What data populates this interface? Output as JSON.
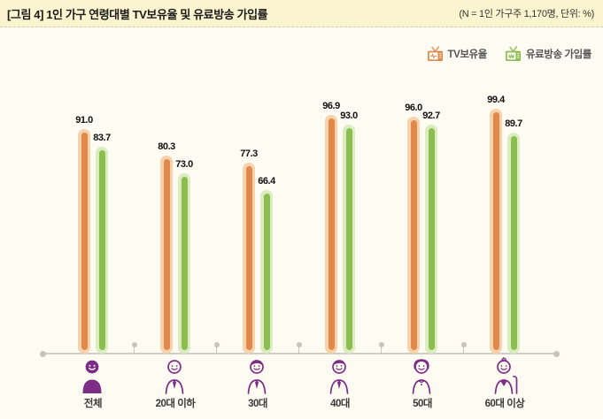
{
  "header": {
    "title": "[그림 4]  1인 가구 연령대별 TV보유율 및 유료방송 가입률",
    "note": "(N = 1인 가구주 1,170명, 단위: %)"
  },
  "legend": [
    {
      "label": "TV보유율",
      "icon": "tv-pulse-icon",
      "color": "#e1884b"
    },
    {
      "label": "유료방송 가입률",
      "icon": "tv-won-icon",
      "color": "#8cbe4f"
    }
  ],
  "chart_data": {
    "type": "bar",
    "title": "1인 가구 연령대별 TV보유율 및 유료방송 가입률",
    "unit": "%",
    "sample_note": "N = 1인 가구주 1,170명",
    "categories": [
      "전체",
      "20대 이하",
      "30대",
      "40대",
      "50대",
      "60대 이상"
    ],
    "axis_icons": [
      "person-solid-icon",
      "person-20s-icon",
      "person-30s-icon",
      "person-40s-icon",
      "person-50s-icon",
      "person-elderly-icon"
    ],
    "series": [
      {
        "name": "TV보유율",
        "values": [
          91.0,
          80.3,
          77.3,
          96.9,
          96.0,
          99.4
        ],
        "color": "#e1884b",
        "light_color": "#f7d2ab"
      },
      {
        "name": "유료방송 가입률",
        "values": [
          83.7,
          73.0,
          66.4,
          93.0,
          92.7,
          89.7
        ],
        "color": "#8cbe4f",
        "light_color": "#dcecc1"
      }
    ],
    "ylim": [
      0,
      100
    ],
    "grid": false,
    "legend_position": "top-right",
    "value_labels": true,
    "accent_color_axis_icons": "#7c2d86"
  }
}
